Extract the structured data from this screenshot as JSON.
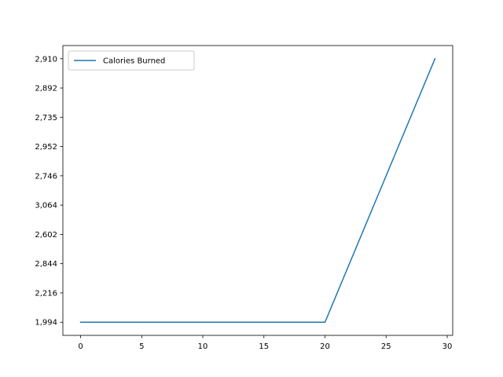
{
  "chart_data": {
    "type": "line",
    "title": "",
    "xlabel": "",
    "ylabel": "",
    "xlim": [
      -1.45,
      30.45
    ],
    "x_ticks": [
      0,
      5,
      10,
      15,
      20,
      25,
      30
    ],
    "x_tick_labels": [
      "0",
      "5",
      "10",
      "15",
      "20",
      "25",
      "30"
    ],
    "y_tick_labels": [
      "1,994",
      "2,216",
      "2,844",
      "2,602",
      "3,064",
      "2,746",
      "2,952",
      "2,735",
      "2,892",
      "2,910"
    ],
    "y_tick_positions": [
      0,
      1,
      2,
      3,
      4,
      5,
      6,
      7,
      8,
      9
    ],
    "ylim": [
      -0.45,
      9.45
    ],
    "series": [
      {
        "name": "Calories Burned",
        "color": "#1f77b4",
        "points": [
          [
            0,
            0
          ],
          [
            20,
            0
          ],
          [
            29,
            9
          ]
        ]
      }
    ],
    "legend": {
      "position": "top-left"
    },
    "grid": false
  }
}
